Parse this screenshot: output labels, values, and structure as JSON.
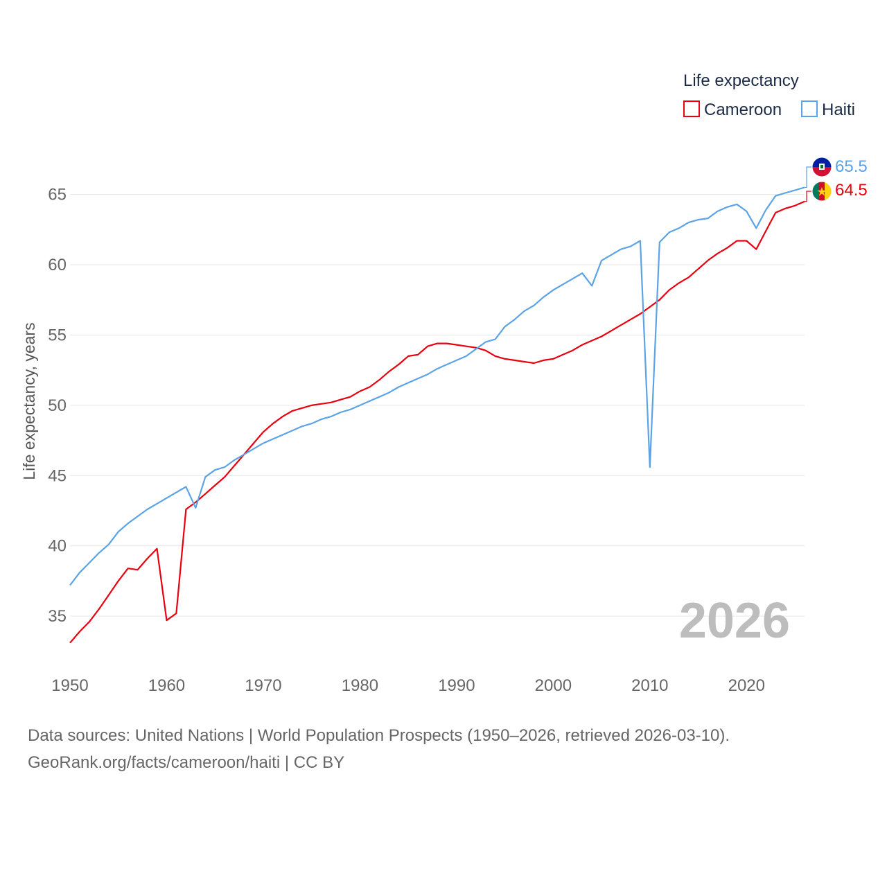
{
  "chart_data": {
    "type": "line",
    "ylabel": "Life expectancy, years",
    "xlim": [
      1950,
      2026
    ],
    "ylim": [
      32,
      67
    ],
    "yticks": [
      35,
      40,
      45,
      50,
      55,
      60,
      65
    ],
    "xticks": [
      1950,
      1960,
      1970,
      1980,
      1990,
      2000,
      2010,
      2020
    ],
    "grid": true,
    "legend": {
      "title": "Life expectancy",
      "position": "top-right"
    },
    "watermark_year": "2026",
    "series": [
      {
        "name": "Cameroon",
        "color": "#e8000f",
        "flag": "cameroon-flag",
        "end_label": "64.5",
        "x": [
          1950,
          1951,
          1952,
          1953,
          1954,
          1955,
          1956,
          1957,
          1958,
          1959,
          1960,
          1961,
          1962,
          1963,
          1964,
          1965,
          1966,
          1967,
          1968,
          1969,
          1970,
          1971,
          1972,
          1973,
          1974,
          1975,
          1976,
          1977,
          1978,
          1979,
          1980,
          1981,
          1982,
          1983,
          1984,
          1985,
          1986,
          1987,
          1988,
          1989,
          1990,
          1991,
          1992,
          1993,
          1994,
          1995,
          1996,
          1997,
          1998,
          1999,
          2000,
          2001,
          2002,
          2003,
          2004,
          2005,
          2006,
          2007,
          2008,
          2009,
          2010,
          2011,
          2012,
          2013,
          2014,
          2015,
          2016,
          2017,
          2018,
          2019,
          2020,
          2021,
          2022,
          2023,
          2024,
          2025,
          2026
        ],
        "values": [
          33.1,
          33.9,
          34.6,
          35.5,
          36.5,
          37.5,
          38.4,
          38.3,
          39.1,
          39.8,
          34.7,
          35.2,
          42.6,
          43.1,
          43.7,
          44.3,
          44.9,
          45.7,
          46.5,
          47.3,
          48.1,
          48.7,
          49.2,
          49.6,
          49.8,
          50.0,
          50.1,
          50.2,
          50.4,
          50.6,
          51.0,
          51.3,
          51.8,
          52.4,
          52.9,
          53.5,
          53.6,
          54.2,
          54.4,
          54.4,
          54.3,
          54.2,
          54.1,
          53.9,
          53.5,
          53.3,
          53.2,
          53.1,
          53.0,
          53.2,
          53.3,
          53.6,
          53.9,
          54.3,
          54.6,
          54.9,
          55.3,
          55.7,
          56.1,
          56.5,
          57.0,
          57.5,
          58.2,
          58.7,
          59.1,
          59.7,
          60.3,
          60.8,
          61.2,
          61.7,
          61.7,
          61.1,
          62.4,
          63.7,
          64.0,
          64.2,
          64.5
        ]
      },
      {
        "name": "Haiti",
        "color": "#5ba3e6",
        "flag": "haiti-flag",
        "end_label": "65.5",
        "x": [
          1950,
          1951,
          1952,
          1953,
          1954,
          1955,
          1956,
          1957,
          1958,
          1959,
          1960,
          1961,
          1962,
          1963,
          1964,
          1965,
          1966,
          1967,
          1968,
          1969,
          1970,
          1971,
          1972,
          1973,
          1974,
          1975,
          1976,
          1977,
          1978,
          1979,
          1980,
          1981,
          1982,
          1983,
          1984,
          1985,
          1986,
          1987,
          1988,
          1989,
          1990,
          1991,
          1992,
          1993,
          1994,
          1995,
          1996,
          1997,
          1998,
          1999,
          2000,
          2001,
          2002,
          2003,
          2004,
          2005,
          2006,
          2007,
          2008,
          2009,
          2010,
          2011,
          2012,
          2013,
          2014,
          2015,
          2016,
          2017,
          2018,
          2019,
          2020,
          2021,
          2022,
          2023,
          2024,
          2025,
          2026
        ],
        "values": [
          37.2,
          38.1,
          38.8,
          39.5,
          40.1,
          41.0,
          41.6,
          42.1,
          42.6,
          43.0,
          43.4,
          43.8,
          44.2,
          42.7,
          44.9,
          45.4,
          45.6,
          46.1,
          46.5,
          46.9,
          47.3,
          47.6,
          47.9,
          48.2,
          48.5,
          48.7,
          49.0,
          49.2,
          49.5,
          49.7,
          50.0,
          50.3,
          50.6,
          50.9,
          51.3,
          51.6,
          51.9,
          52.2,
          52.6,
          52.9,
          53.2,
          53.5,
          54.0,
          54.5,
          54.7,
          55.6,
          56.1,
          56.7,
          57.1,
          57.7,
          58.2,
          58.6,
          59.0,
          59.4,
          58.5,
          60.3,
          60.7,
          61.1,
          61.3,
          61.7,
          45.6,
          61.6,
          62.3,
          62.6,
          63.0,
          63.2,
          63.3,
          63.8,
          64.1,
          64.3,
          63.8,
          62.6,
          63.9,
          64.9,
          65.1,
          65.3,
          65.5
        ]
      }
    ]
  },
  "footer": {
    "sources": "Data sources: United Nations | World Population Prospects (1950–2026, retrieved 2026-03-10).",
    "credit": "GeoRank.org/facts/cameroon/haiti | CC BY"
  }
}
